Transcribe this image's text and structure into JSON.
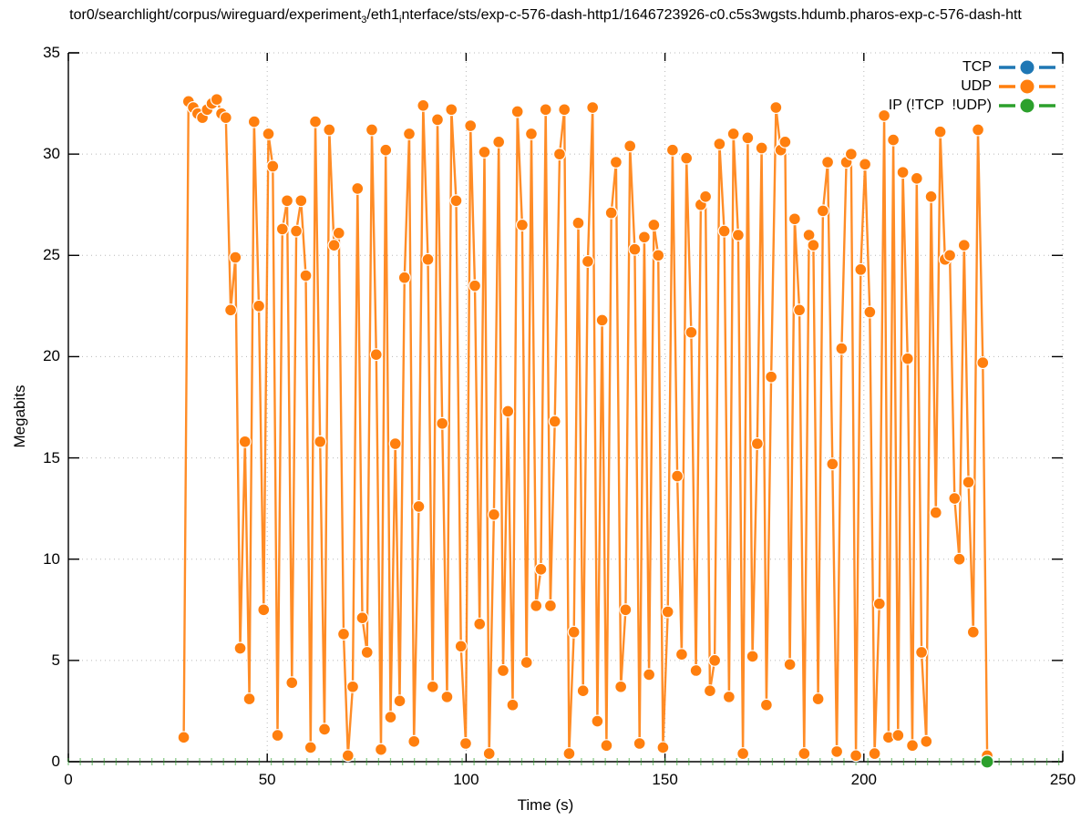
{
  "title": {
    "part1": "tor0/searchlight/corpus/wireguard/experiment",
    "sub1": "3",
    "part2": "/eth1",
    "sub2": "i",
    "part3": "nterface/sts/exp-c-576-dash-http1/1646723926-c0.c5s3wgsts.hdumb.pharos-exp-c-576-dash-htt"
  },
  "axes": {
    "x": {
      "label": "Time (s)",
      "min": 0,
      "max": 250,
      "ticks": [
        0,
        50,
        100,
        150,
        200,
        250
      ]
    },
    "y": {
      "label": "Megabits",
      "min": 0,
      "max": 35,
      "ticks": [
        0,
        5,
        10,
        15,
        20,
        25,
        30,
        35
      ]
    }
  },
  "colors": {
    "tcp": "#1f77b4",
    "udp": "#ff7f0e",
    "ip": "#2ca02c",
    "grid": "#b8b8b8",
    "border": "#000000"
  },
  "chart_data": {
    "type": "line",
    "title": "tor0/searchlight/corpus/wireguard/experiment_3/eth1_interface/sts/exp-c-576-dash-http1/1646723926-c0.c5s3wgsts.hdumb.pharos-exp-c-576-dash-htt",
    "xlabel": "Time (s)",
    "ylabel": "Megabits",
    "xlim": [
      0,
      250
    ],
    "ylim": [
      0,
      35
    ],
    "grid": true,
    "legend_position": "top-right",
    "series": [
      {
        "name": "TCP",
        "color": "#1f77b4",
        "visible_points": false,
        "x": [],
        "y": []
      },
      {
        "name": "UDP",
        "color": "#ff7f0e",
        "visible_points": true,
        "x": [
          29.0,
          30.2,
          31.4,
          32.5,
          33.7,
          34.9,
          36.1,
          37.3,
          38.5,
          39.6,
          40.8,
          42.0,
          43.2,
          44.4,
          45.5,
          46.7,
          47.9,
          49.1,
          50.3,
          51.4,
          52.6,
          53.8,
          55.0,
          56.2,
          57.3,
          58.5,
          59.7,
          60.9,
          62.1,
          63.3,
          64.4,
          65.6,
          66.8,
          68.0,
          69.2,
          70.3,
          71.5,
          72.7,
          73.9,
          75.1,
          76.3,
          77.4,
          78.6,
          79.8,
          81.0,
          82.2,
          83.3,
          84.5,
          85.7,
          86.9,
          88.1,
          89.2,
          90.4,
          91.6,
          92.8,
          94.0,
          95.2,
          96.3,
          97.5,
          98.7,
          99.9,
          101.1,
          102.2,
          103.4,
          104.6,
          105.8,
          107.0,
          108.2,
          109.3,
          110.5,
          111.7,
          112.9,
          114.1,
          115.2,
          116.4,
          117.6,
          118.8,
          120.0,
          121.2,
          122.3,
          123.5,
          124.7,
          125.9,
          127.1,
          128.2,
          129.4,
          130.6,
          131.8,
          133.0,
          134.2,
          135.3,
          136.5,
          137.7,
          138.9,
          140.1,
          141.2,
          142.4,
          143.6,
          144.8,
          146.0,
          147.2,
          148.3,
          149.5,
          150.7,
          151.9,
          153.1,
          154.2,
          155.4,
          156.6,
          157.8,
          159.0,
          160.2,
          161.3,
          162.5,
          163.7,
          164.9,
          166.1,
          167.2,
          168.4,
          169.6,
          170.8,
          172.0,
          173.2,
          174.3,
          175.5,
          176.7,
          177.9,
          179.1,
          180.2,
          181.4,
          182.6,
          183.8,
          185.0,
          186.2,
          187.3,
          188.5,
          189.7,
          190.9,
          192.1,
          193.2,
          194.4,
          195.6,
          196.8,
          198.0,
          199.2,
          200.3,
          201.5,
          202.7,
          203.9,
          205.1,
          206.2,
          207.4,
          208.6,
          209.8,
          211.0,
          212.2,
          213.3,
          214.5,
          215.7,
          216.9,
          218.1,
          219.2,
          220.4,
          221.6,
          222.8,
          224.0,
          225.2,
          226.3,
          227.5,
          228.7,
          229.9,
          231.0
        ],
        "y": [
          1.2,
          32.6,
          32.3,
          32.0,
          31.8,
          32.2,
          32.5,
          32.7,
          32.0,
          31.8,
          22.3,
          24.9,
          5.6,
          15.8,
          3.1,
          31.6,
          22.5,
          7.5,
          31.0,
          29.4,
          1.3,
          26.3,
          27.7,
          3.9,
          26.2,
          27.7,
          24.0,
          0.7,
          31.6,
          15.8,
          1.6,
          31.2,
          25.5,
          26.1,
          6.3,
          0.3,
          3.7,
          28.3,
          7.1,
          5.4,
          31.2,
          20.1,
          0.6,
          30.2,
          2.2,
          15.7,
          3.0,
          23.9,
          31.0,
          1.0,
          12.6,
          32.4,
          24.8,
          3.7,
          31.7,
          16.7,
          3.2,
          32.2,
          27.7,
          5.7,
          0.9,
          31.4,
          23.5,
          6.8,
          30.1,
          0.4,
          12.2,
          30.6,
          4.5,
          17.3,
          2.8,
          32.1,
          26.5,
          4.9,
          31.0,
          7.7,
          9.5,
          32.2,
          7.7,
          16.8,
          30.0,
          32.2,
          0.4,
          6.4,
          26.6,
          3.5,
          24.7,
          32.3,
          2.0,
          21.8,
          0.8,
          27.1,
          29.6,
          3.7,
          7.5,
          30.4,
          25.3,
          0.9,
          25.9,
          4.3,
          26.5,
          25.0,
          0.7,
          7.4,
          30.2,
          14.1,
          5.3,
          29.8,
          21.2,
          4.5,
          27.5,
          27.9,
          3.5,
          5.0,
          30.5,
          26.2,
          3.2,
          31.0,
          26.0,
          0.4,
          30.8,
          5.2,
          15.7,
          30.3,
          2.8,
          19.0,
          32.3,
          30.2,
          30.6,
          4.8,
          26.8,
          22.3,
          0.4,
          26.0,
          25.5,
          3.1,
          27.2,
          29.6,
          14.7,
          0.5,
          20.4,
          29.6,
          30.0,
          0.3,
          24.3,
          29.5,
          22.2,
          0.4,
          7.8,
          31.9,
          1.2,
          30.7,
          1.3,
          29.1,
          19.9,
          0.8,
          28.8,
          5.4,
          1.0,
          27.9,
          12.3,
          31.1,
          24.8,
          25.0,
          13.0,
          10.0,
          25.5,
          13.8,
          6.4,
          31.2,
          19.7,
          0.3
        ]
      },
      {
        "name": "IP (!TCP  !UDP)",
        "color": "#2ca02c",
        "constant_value": 0,
        "x_start": 0,
        "x_end": 250,
        "tick_step": 3,
        "visible_point_x": 231,
        "visible_point_y": 0
      }
    ]
  }
}
